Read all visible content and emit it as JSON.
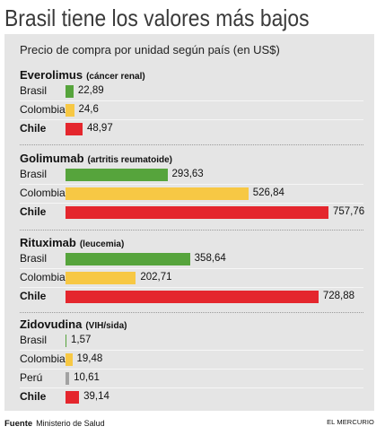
{
  "chart_data": {
    "type": "bar",
    "orientation": "horizontal",
    "title": "Brasil tiene los valores más bajos",
    "subtitle": "Precio de compra por unidad según país (en US$)",
    "grid": false,
    "value_labels": true,
    "groups": [
      {
        "name": "Everolimus",
        "indication": "(cáncer renal)",
        "bars": [
          {
            "country": "Brasil",
            "value": 22.89,
            "label": "22,89"
          },
          {
            "country": "Colombia",
            "value": 24.6,
            "label": "24,6"
          },
          {
            "country": "Chile",
            "value": 48.97,
            "label": "48,97"
          }
        ]
      },
      {
        "name": "Golimumab",
        "indication": "(artritis reumatoide)",
        "bars": [
          {
            "country": "Brasil",
            "value": 293.63,
            "label": "293,63"
          },
          {
            "country": "Colombia",
            "value": 526.84,
            "label": "526,84"
          },
          {
            "country": "Chile",
            "value": 757.76,
            "label": "757,76"
          }
        ]
      },
      {
        "name": "Rituximab",
        "indication": "(leucemia)",
        "bars": [
          {
            "country": "Brasil",
            "value": 358.64,
            "label": "358,64"
          },
          {
            "country": "Colombia",
            "value": 202.71,
            "label": "202,71"
          },
          {
            "country": "Chile",
            "value": 728.88,
            "label": "728,88"
          }
        ]
      },
      {
        "name": "Zidovudina",
        "indication": "(VIH/sida)",
        "bars": [
          {
            "country": "Brasil",
            "value": 1.57,
            "label": "1,57"
          },
          {
            "country": "Colombia",
            "value": 19.48,
            "label": "19,48"
          },
          {
            "country": "Perú",
            "value": 10.61,
            "label": "10,61"
          },
          {
            "country": "Chile",
            "value": 39.14,
            "label": "39,14"
          }
        ]
      }
    ]
  },
  "colors": {
    "Brasil": "#56a43c",
    "Colombia": "#f7c844",
    "Perú": "#a2a2a2",
    "Chile": "#e4262d",
    "panel": "#e5e5e5"
  },
  "footer": {
    "source_label": "Fuente",
    "source": "Ministerio de Salud",
    "brand": "EL MERCURIO"
  }
}
